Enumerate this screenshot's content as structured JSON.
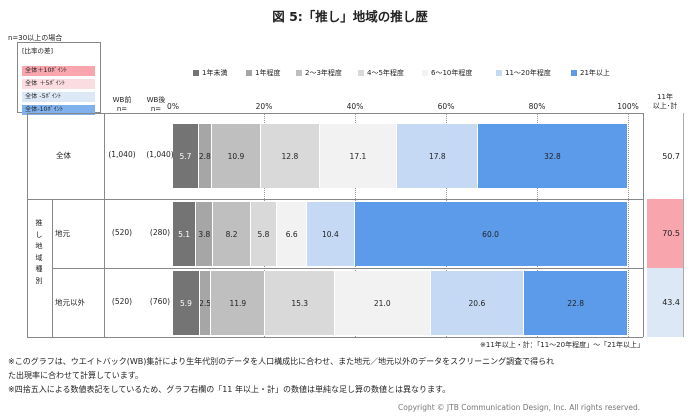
{
  "title": "図 5:「推し」地域の推し歴",
  "base_note": "n=30以上の場合",
  "diff_legend": {
    "title": "[比率の差]",
    "items": [
      {
        "label": "全体＋10ﾎﾟｲﾝﾄ",
        "color": "#f8a5ae"
      },
      {
        "label": "全体 ＋5ﾎﾟｲﾝﾄ",
        "color": "#fbdde1"
      },
      {
        "label": "全体 -5ﾎﾟｲﾝﾄ",
        "color": "#dde8f7"
      },
      {
        "label": "全体-10ﾎﾟｲﾝﾄ",
        "color": "#7fb1ec"
      }
    ]
  },
  "headers": {
    "wb_before": "WB前\nn=",
    "wb_after": "WB後\nn=",
    "total": "11年\n以上･計"
  },
  "side_label": "推\nし\n地\n域\n種\n別",
  "chart_data": {
    "type": "bar",
    "stacked": true,
    "orientation": "horizontal",
    "title": "図 5:「推し」地域の推し歴",
    "xlim": [
      0,
      100
    ],
    "x_ticks": [
      "0%",
      "20%",
      "40%",
      "60%",
      "80%",
      "100%"
    ],
    "legend_position": "top",
    "series": [
      {
        "name": "1年未満",
        "color": "#747474",
        "values": [
          5.7,
          5.1,
          5.9
        ]
      },
      {
        "name": "1年程度",
        "color": "#a6a6a6",
        "values": [
          2.8,
          3.8,
          2.5
        ]
      },
      {
        "name": "2～3年程度",
        "color": "#bfbfbf",
        "values": [
          10.9,
          8.2,
          11.9
        ]
      },
      {
        "name": "4～5年程度",
        "color": "#d9d9d9",
        "values": [
          12.8,
          5.8,
          15.3
        ]
      },
      {
        "name": "6～10年程度",
        "color": "#f2f2f2",
        "values": [
          17.1,
          6.6,
          21.0
        ]
      },
      {
        "name": "11～20年程度",
        "color": "#c5d9f5",
        "values": [
          17.8,
          10.4,
          20.6
        ]
      },
      {
        "name": "21年以上",
        "color": "#5b9bea",
        "values": [
          32.8,
          60.0,
          22.8
        ]
      }
    ],
    "rows": [
      {
        "label": "全体",
        "wb_before": "(1,040)",
        "wb_after": "(1,040)",
        "total": "50.7",
        "total_color": "#ffffff"
      },
      {
        "label": "地元",
        "wb_before": "(520)",
        "wb_after": "(280)",
        "total": "70.5",
        "total_color": "#f8a5ae"
      },
      {
        "label": "地元以外",
        "wb_before": "(520)",
        "wb_after": "(760)",
        "total": "43.4",
        "total_color": "#dde8f7"
      }
    ]
  },
  "total_note": "※11年以上・計：「11～20年程度」～「21年以上」",
  "footnotes": [
    "※このグラフは、ウエイトバック(WB)集計により生年代別のデータを人口構成比に合わせ、また地元／地元以外のデータをスクリーニング調査で得られ",
    "た出現率に合わせて計算しています。",
    "※四捨五入による数値表記をしているため、グラフ右欄の「11 年以上・計」の数値は単純な足し算の数値とは異なります。"
  ],
  "copyright": "Copyright © JTB Communication Design, Inc. All rights reserved."
}
